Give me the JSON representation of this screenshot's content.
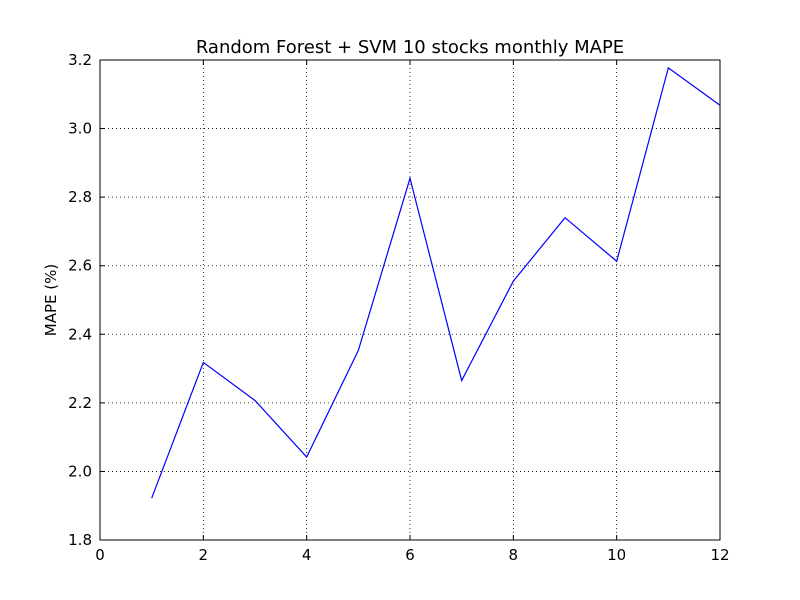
{
  "chart_data": {
    "type": "line",
    "title": "Random Forest + SVM 10 stocks monthly MAPE",
    "xlabel": "",
    "ylabel": "MAPE (%)",
    "xlim": [
      0,
      12
    ],
    "ylim": [
      1.8,
      3.2
    ],
    "xticks": [
      0,
      2,
      4,
      6,
      8,
      10,
      12
    ],
    "yticks": [
      1.8,
      2.0,
      2.2,
      2.4,
      2.6,
      2.8,
      3.0,
      3.2
    ],
    "grid": true,
    "series": [
      {
        "color": "#0000ff",
        "x": [
          1,
          2,
          3,
          4,
          5,
          6,
          7,
          8,
          9,
          10,
          11,
          12
        ],
        "y": [
          1.922,
          2.318,
          2.207,
          2.042,
          2.353,
          2.855,
          2.265,
          2.555,
          2.74,
          2.613,
          3.177,
          3.068
        ]
      }
    ]
  }
}
